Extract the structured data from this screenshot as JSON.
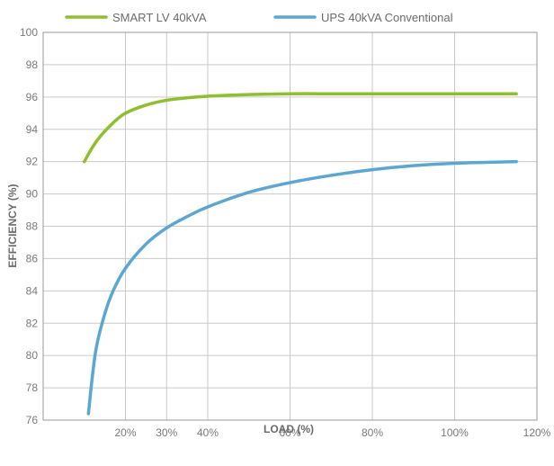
{
  "chart_data": {
    "type": "line",
    "title": "",
    "xlabel": "LOAD (%)",
    "ylabel": "EFFICIENCY (%)",
    "xlim": [
      0,
      120
    ],
    "ylim": [
      76,
      100
    ],
    "x_ticks": [
      20,
      30,
      40,
      60,
      80,
      100,
      120
    ],
    "x_tick_labels": [
      "20%",
      "30%",
      "40%",
      "60%",
      "80%",
      "100%",
      "120%"
    ],
    "y_ticks": [
      76,
      78,
      80,
      82,
      84,
      86,
      88,
      90,
      92,
      94,
      96,
      98,
      100
    ],
    "grid": true,
    "legend_position": "top",
    "series": [
      {
        "name": "SMART LV 40kVA",
        "color": "#8dbf2e",
        "x": [
          10,
          12,
          14,
          17,
          20,
          25,
          30,
          35,
          40,
          50,
          60,
          70,
          80,
          90,
          100,
          115
        ],
        "y": [
          92.0,
          92.9,
          93.6,
          94.4,
          95.0,
          95.5,
          95.8,
          95.95,
          96.05,
          96.15,
          96.2,
          96.2,
          96.2,
          96.2,
          96.2,
          96.2
        ]
      },
      {
        "name": "UPS 40kVA Conventional",
        "color": "#5aa7d3",
        "x": [
          11,
          12,
          13,
          15,
          17,
          20,
          25,
          30,
          35,
          40,
          50,
          60,
          70,
          80,
          90,
          100,
          115
        ],
        "y": [
          76.4,
          78.8,
          80.6,
          82.6,
          84.0,
          85.4,
          86.9,
          87.9,
          88.6,
          89.2,
          90.1,
          90.7,
          91.15,
          91.5,
          91.75,
          91.9,
          92.0
        ]
      }
    ]
  }
}
